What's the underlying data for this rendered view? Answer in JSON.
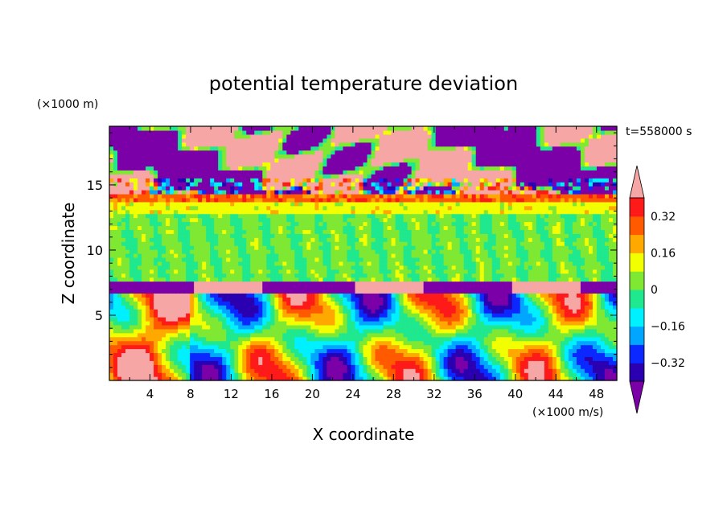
{
  "chart_data": {
    "type": "heatmap",
    "title": "potential temperature deviation",
    "xlabel": "X coordinate",
    "ylabel": "Z coordinate",
    "x_unit": "(×1000 m/s)",
    "y_unit": "(×1000 m)",
    "time_label": "t=558000 s",
    "xlim": [
      0,
      50
    ],
    "ylim": [
      0,
      19.5
    ],
    "x_ticks": [
      "4",
      "8",
      "12",
      "16",
      "20",
      "24",
      "28",
      "32",
      "36",
      "40",
      "44",
      "48"
    ],
    "y_ticks": [
      "5",
      "10",
      "15"
    ],
    "colorbar": {
      "labels": [
        "0.32",
        "0.16",
        "0",
        "−0.16",
        "−0.32"
      ],
      "label_values": [
        0.32,
        0.16,
        0,
        -0.16,
        -0.32
      ],
      "levels": [
        -0.4,
        -0.32,
        -0.24,
        -0.16,
        -0.08,
        0,
        0.08,
        0.16,
        0.24,
        0.32,
        0.4
      ],
      "colors": [
        "#7b00a8",
        "#2a00b0",
        "#0a28ff",
        "#00a6ff",
        "#00f0ff",
        "#1fe88e",
        "#7ee832",
        "#f2ff00",
        "#ffa800",
        "#ff5a00",
        "#ff1a1a",
        "#f7a6a6"
      ],
      "extend": "both"
    },
    "regions_description": "upper layer z>13.5 mixed pink/purple noise; stratified band 7.5-13.5 near 0; lower convective layer 0-7.5 with alternating warm/cold plumes"
  }
}
